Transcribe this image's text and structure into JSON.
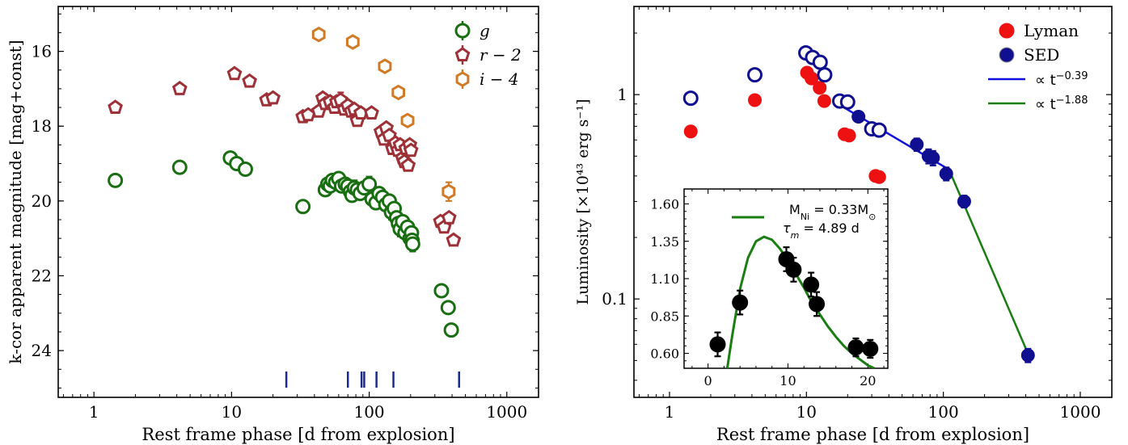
{
  "chart_data": [
    {
      "type": "scatter",
      "xlabel": "Rest frame phase [d from explosion]",
      "ylabel": "k-cor apparent magnitude [mag+const]",
      "xscale": "log",
      "xlim": [
        0.55,
        1700
      ],
      "ylim": [
        25.25,
        14.8
      ],
      "y_inverted": true,
      "xticks": [
        {
          "v": 1,
          "label": "1"
        },
        {
          "v": 10,
          "label": "10"
        },
        {
          "v": 100,
          "label": "100"
        },
        {
          "v": 1000,
          "label": "1000"
        }
      ],
      "yticks": [
        {
          "v": 16,
          "label": "16"
        },
        {
          "v": 18,
          "label": "18"
        },
        {
          "v": 20,
          "label": "20"
        },
        {
          "v": 22,
          "label": "22"
        },
        {
          "v": 24,
          "label": "24"
        }
      ],
      "legend_position": "top-right",
      "legend": [
        {
          "label": "g",
          "color": "#1a6e12",
          "marker": "circle"
        },
        {
          "label": "r − 2",
          "color": "#9e3138",
          "marker": "pentagon"
        },
        {
          "label": "i − 4",
          "color": "#d07a25",
          "marker": "hexagon"
        }
      ],
      "spectra_epochs": [
        25,
        70,
        88,
        92,
        113,
        150,
        450
      ],
      "spectra_color": "#1a2b8c",
      "series": [
        {
          "name": "g",
          "color": "#1a6e12",
          "marker": "circle",
          "points": [
            [
              1.43,
              19.45
            ],
            [
              4.2,
              19.1
            ],
            [
              9.8,
              18.85
            ],
            [
              10.9,
              19.0
            ],
            [
              12.6,
              19.15
            ],
            [
              33,
              20.15
            ],
            [
              48,
              19.7
            ],
            [
              50,
              19.55
            ],
            [
              52,
              19.6
            ],
            [
              54,
              19.45
            ],
            [
              57,
              19.5
            ],
            [
              60,
              19.4
            ],
            [
              63,
              19.6
            ],
            [
              67,
              19.55
            ],
            [
              70,
              19.6
            ],
            [
              73,
              19.75
            ],
            [
              75,
              19.85
            ],
            [
              78,
              19.65
            ],
            [
              82,
              19.7
            ],
            [
              86,
              19.8
            ],
            [
              92,
              19.65
            ],
            [
              100,
              19.55
            ],
            [
              105,
              19.95
            ],
            [
              112,
              20.05
            ],
            [
              118,
              19.8
            ],
            [
              125,
              19.9
            ],
            [
              132,
              20.1
            ],
            [
              140,
              20.0
            ],
            [
              145,
              20.3
            ],
            [
              152,
              20.2
            ],
            [
              158,
              20.45
            ],
            [
              163,
              20.6
            ],
            [
              168,
              20.75
            ],
            [
              175,
              20.55
            ],
            [
              182,
              20.85
            ],
            [
              190,
              20.7
            ],
            [
              198,
              21.0
            ],
            [
              203,
              20.85
            ],
            [
              205,
              21.05
            ],
            [
              207,
              21.15
            ],
            [
              335,
              22.4
            ],
            [
              375,
              22.85
            ],
            [
              395,
              23.45
            ]
          ],
          "errors": [
            [
              100,
              0.2
            ],
            [
              78,
              0.2
            ],
            [
              145,
              0.2
            ],
            [
              163,
              0.2
            ],
            [
              168,
              0.2
            ],
            [
              207,
              0.2
            ]
          ]
        },
        {
          "name": "r − 2",
          "color": "#9e3138",
          "marker": "pentagon",
          "points": [
            [
              1.43,
              17.5
            ],
            [
              4.2,
              17.0
            ],
            [
              10.5,
              16.6
            ],
            [
              13.5,
              16.8
            ],
            [
              18,
              17.3
            ],
            [
              20,
              17.25
            ],
            [
              33,
              17.75
            ],
            [
              36,
              17.7
            ],
            [
              43,
              17.6
            ],
            [
              46,
              17.25
            ],
            [
              48,
              17.4
            ],
            [
              52,
              17.35
            ],
            [
              56,
              17.5
            ],
            [
              58,
              17.35
            ],
            [
              62,
              17.3
            ],
            [
              66,
              17.55
            ],
            [
              70,
              17.45
            ],
            [
              74,
              17.6
            ],
            [
              78,
              17.55
            ],
            [
              82,
              17.85
            ],
            [
              87,
              17.65
            ],
            [
              104,
              17.65
            ],
            [
              122,
              18.15
            ],
            [
              128,
              18.35
            ],
            [
              133,
              18.05
            ],
            [
              140,
              18.25
            ],
            [
              148,
              18.6
            ],
            [
              155,
              18.45
            ],
            [
              162,
              18.65
            ],
            [
              168,
              18.5
            ],
            [
              175,
              18.85
            ],
            [
              180,
              18.95
            ],
            [
              185,
              18.6
            ],
            [
              192,
              19.05
            ],
            [
              197,
              18.5
            ],
            [
              201,
              18.65
            ],
            [
              330,
              20.55
            ],
            [
              350,
              20.7
            ],
            [
              380,
              20.45
            ],
            [
              410,
              21.05
            ]
          ],
          "errors": [
            [
              62,
              0.2
            ],
            [
              140,
              0.2
            ]
          ]
        },
        {
          "name": "i − 4",
          "color": "#d07a25",
          "marker": "hexagon",
          "points": [
            [
              43,
              15.55
            ],
            [
              76,
              15.75
            ],
            [
              130,
              16.4
            ],
            [
              163,
              17.1
            ],
            [
              190,
              17.85
            ],
            [
              378,
              19.75
            ]
          ],
          "errors": [
            [
              378,
              0.25
            ]
          ]
        }
      ]
    },
    {
      "type": "scatter",
      "xlabel": "Rest frame phase [d from explosion]",
      "ylabel": "Luminosity [×10⁴³ erg s⁻¹]",
      "xscale": "log",
      "yscale": "log",
      "xlim": [
        0.55,
        1700
      ],
      "ylim": [
        0.033,
        2.7
      ],
      "xticks": [
        {
          "v": 1,
          "label": "1"
        },
        {
          "v": 10,
          "label": "10"
        },
        {
          "v": 100,
          "label": "100"
        },
        {
          "v": 1000,
          "label": "1000"
        }
      ],
      "yticks": [
        {
          "v": 0.1,
          "label": "0.1"
        },
        {
          "v": 1,
          "label": "1"
        }
      ],
      "legend_position": "top-right",
      "legend": [
        {
          "label": "Lyman",
          "color": "#ee1111",
          "marker": "filled-circle"
        },
        {
          "label": "SED",
          "color": "#0f0f8f",
          "marker": "filled-circle"
        },
        {
          "label": "∝ t",
          "exponent": "−0.39",
          "color": "#1010dd",
          "marker": "line"
        },
        {
          "label": "∝ t",
          "exponent": "−1.88",
          "color": "#1a7e12",
          "marker": "line"
        }
      ],
      "series": [
        {
          "name": "Lyman",
          "color": "#ee1111",
          "marker": "filled-circle",
          "points": [
            [
              1.43,
              0.66
            ],
            [
              4.2,
              0.94
            ],
            [
              10.1,
              1.28
            ],
            [
              10.9,
              1.2
            ],
            [
              12.5,
              1.08
            ],
            [
              13.5,
              0.93
            ],
            [
              19,
              0.64
            ],
            [
              20.5,
              0.63
            ],
            [
              32,
              0.4
            ],
            [
              34,
              0.395
            ]
          ]
        },
        {
          "name": "SED open",
          "color": "#0f0f8f",
          "marker": "open-circle",
          "points": [
            [
              1.43,
              0.96
            ],
            [
              4.2,
              1.25
            ],
            [
              9.9,
              1.6
            ],
            [
              11.1,
              1.52
            ],
            [
              12.6,
              1.44
            ],
            [
              13.6,
              1.25
            ],
            [
              17.5,
              0.93
            ],
            [
              20,
              0.92
            ],
            [
              30,
              0.68
            ],
            [
              34,
              0.67
            ]
          ]
        },
        {
          "name": "SED",
          "color": "#0f0f8f",
          "marker": "filled-circle",
          "points": [
            [
              24,
              0.78
            ],
            [
              64,
              0.57
            ],
            [
              78,
              0.5
            ],
            [
              84,
              0.49
            ],
            [
              105,
              0.41
            ],
            [
              142,
              0.3
            ],
            [
              415,
              0.053
            ]
          ],
          "errors": [
            [
              64,
              0.04
            ],
            [
              78,
              0.04
            ],
            [
              84,
              0.04
            ],
            [
              105,
              0.03
            ],
            [
              142,
              0.02
            ],
            [
              415,
              0.004
            ]
          ]
        },
        {
          "name": "fit-0.39",
          "color": "#1010dd",
          "marker": "line",
          "points": [
            [
              17,
              0.9
            ],
            [
              110,
              0.43
            ]
          ]
        },
        {
          "name": "fit-1.88",
          "color": "#1a7e12",
          "marker": "line",
          "points": [
            [
              110,
              0.43
            ],
            [
              420,
              0.053
            ]
          ]
        }
      ],
      "inset": {
        "xlim": [
          -3,
          22.5
        ],
        "ylim": [
          0.5,
          1.7
        ],
        "xticks": [
          {
            "v": 0,
            "label": "0"
          },
          {
            "v": 10,
            "label": "10"
          },
          {
            "v": 20,
            "label": "20"
          }
        ],
        "yticks": [
          {
            "v": 0.6,
            "label": "0.60"
          },
          {
            "v": 0.85,
            "label": "0.85"
          },
          {
            "v": 1.1,
            "label": "1.10"
          },
          {
            "v": 1.35,
            "label": "1.35"
          },
          {
            "v": 1.6,
            "label": "1.60"
          }
        ],
        "legend_line1": "M",
        "legend_line1_sub": "Ni",
        "legend_line1_value": " = 0.33M",
        "legend_line1_sun": "⊙",
        "legend_line2": "τ",
        "legend_line2_sub": "m",
        "legend_line2_value": " = 4.89 d",
        "legend_color": "#1a7e12",
        "points": [
          [
            1.2,
            0.66
          ],
          [
            4.0,
            0.94
          ],
          [
            9.8,
            1.23
          ],
          [
            10.7,
            1.16
          ],
          [
            12.9,
            1.06
          ],
          [
            13.6,
            0.93
          ],
          [
            18.5,
            0.64
          ],
          [
            20.3,
            0.63
          ]
        ],
        "errors": [
          [
            1.2,
            0.08
          ],
          [
            4.0,
            0.08
          ],
          [
            9.8,
            0.08
          ],
          [
            10.7,
            0.08
          ],
          [
            12.9,
            0.08
          ],
          [
            13.6,
            0.08
          ],
          [
            18.5,
            0.06
          ],
          [
            20.3,
            0.06
          ]
        ],
        "model": [
          [
            2.4,
            0.5
          ],
          [
            3,
            0.71
          ],
          [
            4,
            1.03
          ],
          [
            5,
            1.24
          ],
          [
            6,
            1.35
          ],
          [
            7,
            1.38
          ],
          [
            8,
            1.36
          ],
          [
            9,
            1.3
          ],
          [
            10,
            1.22
          ],
          [
            11,
            1.13
          ],
          [
            12,
            1.04
          ],
          [
            13,
            0.94
          ],
          [
            14,
            0.86
          ],
          [
            15,
            0.78
          ],
          [
            16,
            0.71
          ],
          [
            17,
            0.65
          ],
          [
            18,
            0.6
          ],
          [
            19,
            0.56
          ],
          [
            20,
            0.52
          ],
          [
            20.8,
            0.5
          ]
        ]
      }
    }
  ]
}
